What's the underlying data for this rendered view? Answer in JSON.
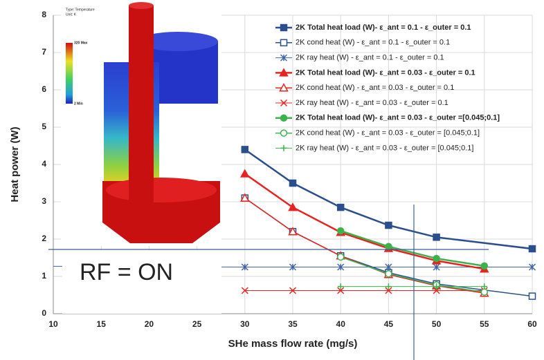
{
  "chart_data": {
    "type": "line",
    "y_label": "Heat power (W)",
    "x_label": "SHe mass flow rate (mg/s)",
    "annotation": "RF = ON",
    "xlim": [
      10,
      60
    ],
    "xticks": [
      10,
      15,
      20,
      25,
      30,
      35,
      40,
      45,
      50,
      55,
      60
    ],
    "ylim": [
      0,
      8
    ],
    "yticks": [
      0,
      1,
      2,
      3,
      4,
      5,
      6,
      7,
      8
    ],
    "grid": true,
    "series": [
      {
        "name": "2K Total heat load (W)- ε_ant = 0.1 - ε_outer = 0.1",
        "color": "#2b4f8c",
        "marker": "square",
        "filled": true,
        "bold": true,
        "width": 2.5,
        "x": [
          30,
          35,
          40,
          45,
          50,
          60
        ],
        "values": [
          4.4,
          3.5,
          2.85,
          2.37,
          2.05,
          1.74
        ]
      },
      {
        "name": "2K cond heat (W) - ε_ant = 0.1 - ε_outer = 0.1",
        "color": "#2b4f8c",
        "marker": "square",
        "filled": false,
        "bold": false,
        "width": 1.5,
        "x": [
          30,
          35,
          40,
          45,
          50,
          60
        ],
        "values": [
          3.1,
          2.2,
          1.55,
          1.1,
          0.8,
          0.47
        ]
      },
      {
        "name": "2K ray heat (W) - ε_ant = 0.1 - ε_outer = 0.1",
        "color": "#3f63a8",
        "marker": "star",
        "filled": false,
        "bold": false,
        "width": 1,
        "x": [
          10,
          30,
          35,
          40,
          45,
          50,
          60
        ],
        "values": [
          1.27,
          1.25,
          1.25,
          1.25,
          1.25,
          1.25,
          1.25
        ]
      },
      {
        "name": "2K Total heat load (W)- ε_ant = 0.03 - ε_outer = 0.1",
        "color": "#e8231f",
        "marker": "triangle",
        "filled": true,
        "bold": true,
        "width": 2.5,
        "x": [
          30,
          35,
          40,
          45,
          50,
          55
        ],
        "values": [
          3.75,
          2.85,
          2.18,
          1.75,
          1.42,
          1.2
        ]
      },
      {
        "name": "2K cond heat (W) - ε_ant = 0.03 - ε_outer = 0.1",
        "color": "#e8231f",
        "marker": "triangle",
        "filled": false,
        "bold": false,
        "width": 1.5,
        "x": [
          30,
          35,
          40,
          45,
          50,
          55
        ],
        "values": [
          3.1,
          2.2,
          1.55,
          1.05,
          0.75,
          0.55
        ]
      },
      {
        "name": "2K ray heat (W) - ε_ant = 0.03 - ε_outer = 0.1",
        "color": "#e8231f",
        "marker": "x",
        "filled": false,
        "bold": false,
        "width": 1,
        "x": [
          30,
          35,
          40,
          45,
          50,
          55
        ],
        "values": [
          0.62,
          0.62,
          0.62,
          0.62,
          0.62,
          0.62
        ]
      },
      {
        "name": "2K Total heat load (W)- ε_ant = 0.03 - ε_outer =[0.045;0.1]",
        "color": "#3cb34a",
        "marker": "circle",
        "filled": true,
        "bold": true,
        "width": 2.5,
        "x": [
          40,
          45,
          50,
          55
        ],
        "values": [
          2.22,
          1.8,
          1.48,
          1.28
        ]
      },
      {
        "name": "2K cond heat (W) - ε_ant = 0.03 - ε_outer = [0.045;0.1]",
        "color": "#3cb34a",
        "marker": "circle",
        "filled": false,
        "bold": false,
        "width": 1.5,
        "x": [
          40,
          45,
          50,
          55
        ],
        "values": [
          1.52,
          1.07,
          0.77,
          0.58
        ]
      },
      {
        "name": "2K ray heat (W) - ε_ant = 0.03 - ε_outer = [0.045;0.1]",
        "color": "#3cb34a",
        "marker": "plus",
        "filled": false,
        "bold": false,
        "width": 1,
        "x": [
          40,
          45,
          50,
          55
        ],
        "values": [
          0.73,
          0.73,
          0.73,
          0.73
        ]
      }
    ]
  },
  "overlay": {
    "type_label": "Type: Temperature",
    "unit_label": "Unit: K",
    "max_label": "320 Max",
    "min_label": "2 Min"
  }
}
